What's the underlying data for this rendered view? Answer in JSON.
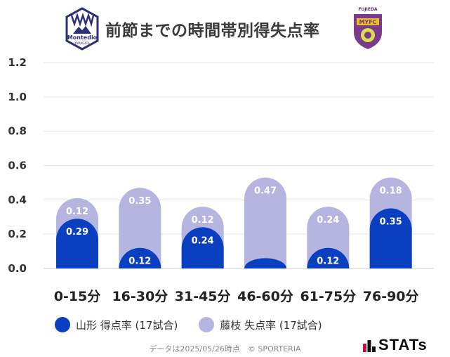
{
  "header": {
    "title": "前節までの時間帯別得失点率",
    "left_logo": "Montedio",
    "left_logo_sub": "YAMAGATA",
    "right_logo": "MYFC",
    "right_logo_sub": "FUJIEDA"
  },
  "colors": {
    "series1": "#0a3fbf",
    "series2": "#b5b5e0",
    "grid": "#e6e6e6"
  },
  "chart_data": {
    "type": "bar",
    "stacked": true,
    "categories": [
      "0-15分",
      "16-30分",
      "31-45分",
      "46-60分",
      "61-75分",
      "76-90分"
    ],
    "series": [
      {
        "name": "山形 得点率 (17試合)",
        "values": [
          0.29,
          0.12,
          0.24,
          0.06,
          0.12,
          0.35
        ],
        "labels": [
          "0.29",
          "0.12",
          "0.24",
          "",
          "0.12",
          "0.35"
        ]
      },
      {
        "name": "藤枝 失点率 (17試合)",
        "values": [
          0.12,
          0.35,
          0.12,
          0.47,
          0.24,
          0.18
        ],
        "labels": [
          "0.12",
          "0.35",
          "0.12",
          "0.47",
          "0.24",
          "0.18"
        ]
      }
    ],
    "yticks": [
      "0.0",
      "0.2",
      "0.4",
      "0.6",
      "0.8",
      "1.0",
      "1.2"
    ],
    "ylim": [
      0,
      1.2
    ],
    "grid": true,
    "legend_position": "bottom"
  },
  "legend": [
    "山形 得点率 (17試合)",
    "藤枝 失点率 (17試合)"
  ],
  "footer": {
    "note": "データは2025/05/26時点　© SPORTERIA",
    "brand": "STATs"
  }
}
